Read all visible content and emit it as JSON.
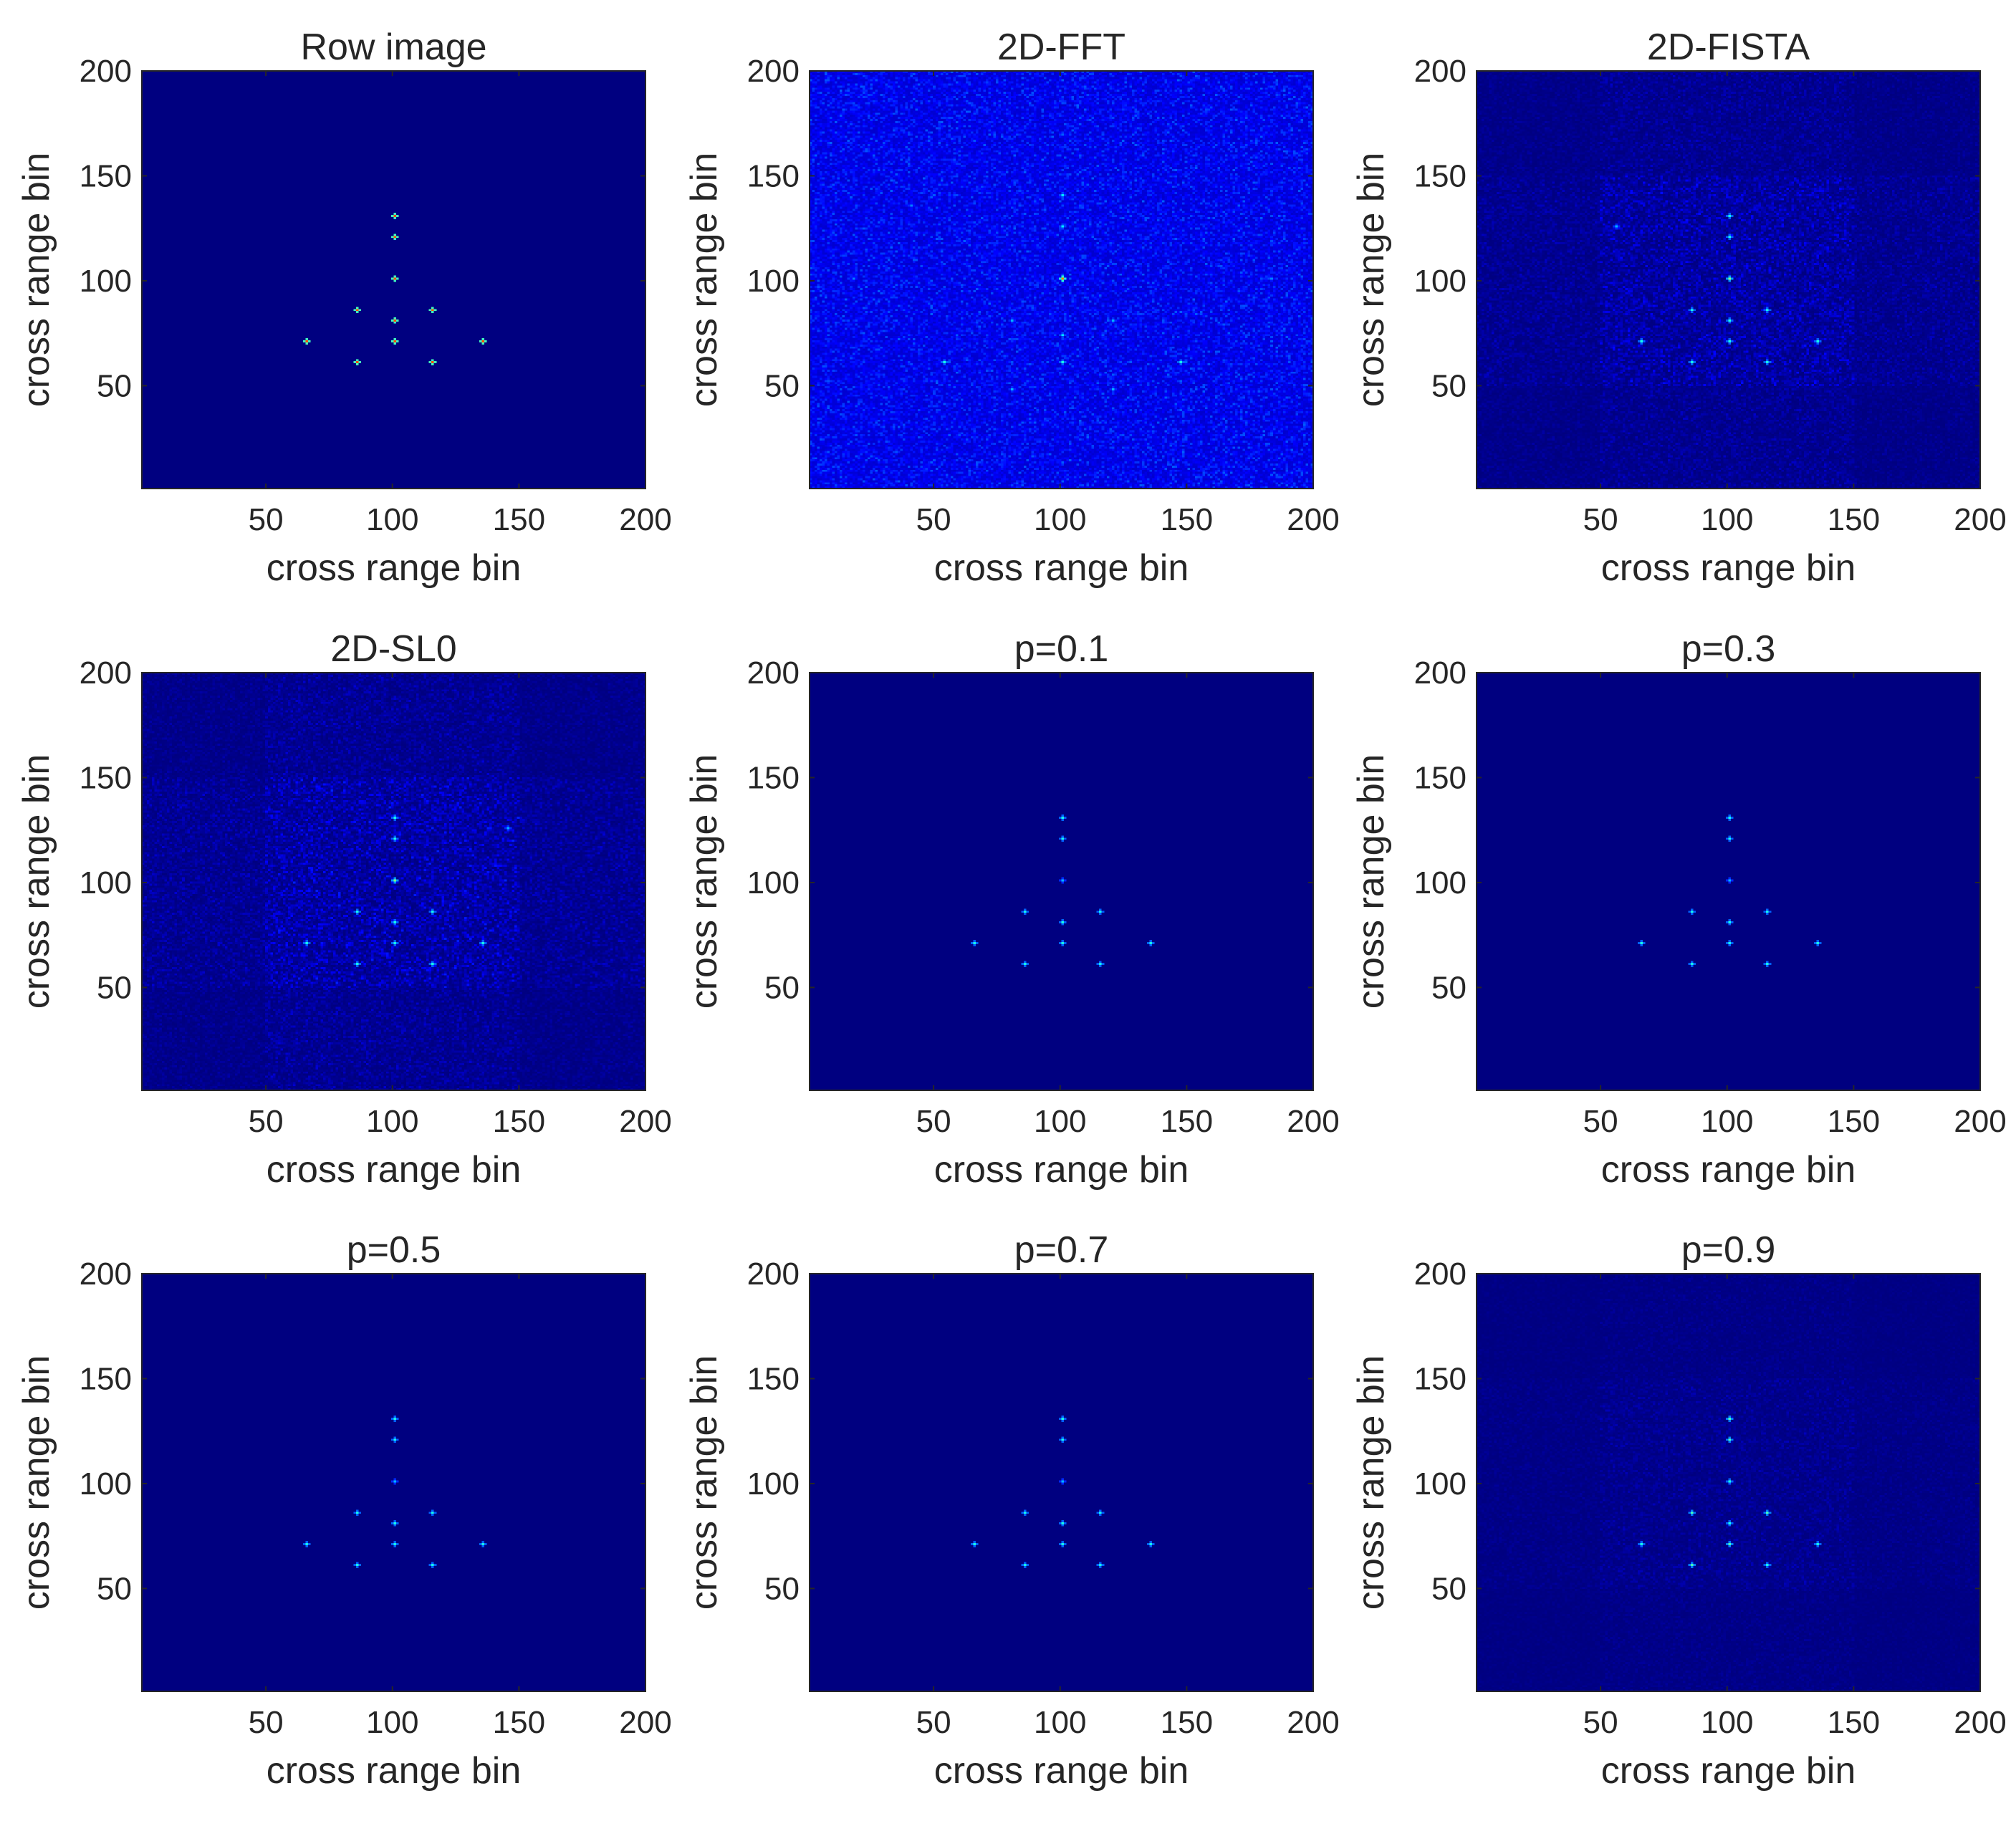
{
  "figure": {
    "colormap": "jet",
    "background_color": "#00008f",
    "axis_color": "#262626"
  },
  "chart_data": [
    {
      "type": "heatmap",
      "title": "Row image",
      "xlabel": "cross range bin",
      "ylabel": "cross range bin",
      "xlim": [
        1,
        200
      ],
      "ylim": [
        1,
        200
      ],
      "xticks": [
        50,
        100,
        150,
        200
      ],
      "yticks": [
        50,
        100,
        150,
        200
      ],
      "noise": "none",
      "noise_level": 0.0,
      "peaks": [
        {
          "x": 101,
          "y": 131,
          "v": 0.8
        },
        {
          "x": 101,
          "y": 121,
          "v": 0.8
        },
        {
          "x": 101,
          "y": 101,
          "v": 0.8
        },
        {
          "x": 86,
          "y": 86,
          "v": 0.8
        },
        {
          "x": 116,
          "y": 86,
          "v": 0.8
        },
        {
          "x": 101,
          "y": 81,
          "v": 0.8
        },
        {
          "x": 101,
          "y": 71,
          "v": 0.8
        },
        {
          "x": 66,
          "y": 71,
          "v": 0.8
        },
        {
          "x": 136,
          "y": 71,
          "v": 0.8
        },
        {
          "x": 86,
          "y": 61,
          "v": 0.8
        },
        {
          "x": 116,
          "y": 61,
          "v": 0.8
        }
      ]
    },
    {
      "type": "heatmap",
      "title": "2D-FFT",
      "xlabel": "cross range bin",
      "ylabel": "cross range bin",
      "xlim": [
        1,
        200
      ],
      "ylim": [
        1,
        200
      ],
      "xticks": [
        50,
        100,
        150,
        200
      ],
      "yticks": [
        50,
        100,
        150,
        200
      ],
      "noise": "global",
      "noise_level": 0.22,
      "peaks": [
        {
          "x": 101,
          "y": 101,
          "v": 0.75
        },
        {
          "x": 101,
          "y": 141,
          "v": 0.35
        },
        {
          "x": 101,
          "y": 126,
          "v": 0.35
        },
        {
          "x": 101,
          "y": 74,
          "v": 0.35
        },
        {
          "x": 101,
          "y": 61,
          "v": 0.4
        },
        {
          "x": 54,
          "y": 61,
          "v": 0.4
        },
        {
          "x": 148,
          "y": 61,
          "v": 0.4
        },
        {
          "x": 81,
          "y": 81,
          "v": 0.3
        },
        {
          "x": 121,
          "y": 81,
          "v": 0.3
        },
        {
          "x": 81,
          "y": 48,
          "v": 0.3
        },
        {
          "x": 121,
          "y": 48,
          "v": 0.3
        },
        {
          "x": 41,
          "y": 136,
          "v": 0.25
        },
        {
          "x": 18,
          "y": 101,
          "v": 0.25
        },
        {
          "x": 184,
          "y": 101,
          "v": 0.25
        }
      ]
    },
    {
      "type": "heatmap",
      "title": "2D-FISTA",
      "xlabel": "cross range bin",
      "ylabel": "cross range bin",
      "xlim": [
        1,
        200
      ],
      "ylim": [
        1,
        200
      ],
      "xticks": [
        50,
        100,
        150,
        200
      ],
      "yticks": [
        50,
        100,
        150,
        200
      ],
      "noise": "center_box",
      "noise_level": 0.14,
      "peaks": [
        {
          "x": 101,
          "y": 131,
          "v": 0.4
        },
        {
          "x": 101,
          "y": 121,
          "v": 0.4
        },
        {
          "x": 101,
          "y": 101,
          "v": 0.5
        },
        {
          "x": 86,
          "y": 86,
          "v": 0.4
        },
        {
          "x": 116,
          "y": 86,
          "v": 0.4
        },
        {
          "x": 101,
          "y": 81,
          "v": 0.4
        },
        {
          "x": 101,
          "y": 71,
          "v": 0.4
        },
        {
          "x": 66,
          "y": 71,
          "v": 0.4
        },
        {
          "x": 136,
          "y": 71,
          "v": 0.4
        },
        {
          "x": 86,
          "y": 61,
          "v": 0.4
        },
        {
          "x": 116,
          "y": 61,
          "v": 0.4
        },
        {
          "x": 56,
          "y": 126,
          "v": 0.3
        }
      ]
    },
    {
      "type": "heatmap",
      "title": "2D-SL0",
      "xlabel": "cross range bin",
      "ylabel": "cross range bin",
      "xlim": [
        1,
        200
      ],
      "ylim": [
        1,
        200
      ],
      "xticks": [
        50,
        100,
        150,
        200
      ],
      "yticks": [
        50,
        100,
        150,
        200
      ],
      "noise": "center_box",
      "noise_level": 0.16,
      "peaks": [
        {
          "x": 101,
          "y": 131,
          "v": 0.4
        },
        {
          "x": 101,
          "y": 121,
          "v": 0.4
        },
        {
          "x": 101,
          "y": 101,
          "v": 0.5
        },
        {
          "x": 86,
          "y": 86,
          "v": 0.4
        },
        {
          "x": 116,
          "y": 86,
          "v": 0.4
        },
        {
          "x": 101,
          "y": 81,
          "v": 0.4
        },
        {
          "x": 101,
          "y": 71,
          "v": 0.4
        },
        {
          "x": 66,
          "y": 71,
          "v": 0.4
        },
        {
          "x": 136,
          "y": 71,
          "v": 0.4
        },
        {
          "x": 86,
          "y": 61,
          "v": 0.4
        },
        {
          "x": 116,
          "y": 61,
          "v": 0.4
        },
        {
          "x": 146,
          "y": 126,
          "v": 0.3
        }
      ]
    },
    {
      "type": "heatmap",
      "title": "p=0.1",
      "xlabel": "cross range bin",
      "ylabel": "cross range bin",
      "xlim": [
        1,
        200
      ],
      "ylim": [
        1,
        200
      ],
      "xticks": [
        50,
        100,
        150,
        200
      ],
      "yticks": [
        50,
        100,
        150,
        200
      ],
      "noise": "none",
      "noise_level": 0.0,
      "peaks": [
        {
          "x": 101,
          "y": 131,
          "v": 0.4
        },
        {
          "x": 101,
          "y": 121,
          "v": 0.4
        },
        {
          "x": 101,
          "y": 101,
          "v": 0.3
        },
        {
          "x": 86,
          "y": 86,
          "v": 0.4
        },
        {
          "x": 116,
          "y": 86,
          "v": 0.4
        },
        {
          "x": 101,
          "y": 81,
          "v": 0.4
        },
        {
          "x": 101,
          "y": 71,
          "v": 0.4
        },
        {
          "x": 66,
          "y": 71,
          "v": 0.4
        },
        {
          "x": 136,
          "y": 71,
          "v": 0.4
        },
        {
          "x": 86,
          "y": 61,
          "v": 0.4
        },
        {
          "x": 116,
          "y": 61,
          "v": 0.4
        }
      ]
    },
    {
      "type": "heatmap",
      "title": "p=0.3",
      "xlabel": "cross range bin",
      "ylabel": "cross range bin",
      "xlim": [
        1,
        200
      ],
      "ylim": [
        1,
        200
      ],
      "xticks": [
        50,
        100,
        150,
        200
      ],
      "yticks": [
        50,
        100,
        150,
        200
      ],
      "noise": "none",
      "noise_level": 0.0,
      "peaks": [
        {
          "x": 101,
          "y": 131,
          "v": 0.4
        },
        {
          "x": 101,
          "y": 121,
          "v": 0.4
        },
        {
          "x": 101,
          "y": 101,
          "v": 0.3
        },
        {
          "x": 86,
          "y": 86,
          "v": 0.4
        },
        {
          "x": 116,
          "y": 86,
          "v": 0.4
        },
        {
          "x": 101,
          "y": 81,
          "v": 0.4
        },
        {
          "x": 101,
          "y": 71,
          "v": 0.4
        },
        {
          "x": 66,
          "y": 71,
          "v": 0.4
        },
        {
          "x": 136,
          "y": 71,
          "v": 0.4
        },
        {
          "x": 86,
          "y": 61,
          "v": 0.4
        },
        {
          "x": 116,
          "y": 61,
          "v": 0.4
        }
      ]
    },
    {
      "type": "heatmap",
      "title": "p=0.5",
      "xlabel": "cross range bin",
      "ylabel": "cross range bin",
      "xlim": [
        1,
        200
      ],
      "ylim": [
        1,
        200
      ],
      "xticks": [
        50,
        100,
        150,
        200
      ],
      "yticks": [
        50,
        100,
        150,
        200
      ],
      "noise": "none",
      "noise_level": 0.0,
      "peaks": [
        {
          "x": 101,
          "y": 131,
          "v": 0.4
        },
        {
          "x": 101,
          "y": 121,
          "v": 0.4
        },
        {
          "x": 101,
          "y": 101,
          "v": 0.3
        },
        {
          "x": 86,
          "y": 86,
          "v": 0.4
        },
        {
          "x": 116,
          "y": 86,
          "v": 0.4
        },
        {
          "x": 101,
          "y": 81,
          "v": 0.4
        },
        {
          "x": 101,
          "y": 71,
          "v": 0.4
        },
        {
          "x": 66,
          "y": 71,
          "v": 0.4
        },
        {
          "x": 136,
          "y": 71,
          "v": 0.4
        },
        {
          "x": 86,
          "y": 61,
          "v": 0.4
        },
        {
          "x": 116,
          "y": 61,
          "v": 0.4
        }
      ]
    },
    {
      "type": "heatmap",
      "title": "p=0.7",
      "xlabel": "cross range bin",
      "ylabel": "cross range bin",
      "xlim": [
        1,
        200
      ],
      "ylim": [
        1,
        200
      ],
      "xticks": [
        50,
        100,
        150,
        200
      ],
      "yticks": [
        50,
        100,
        150,
        200
      ],
      "noise": "none",
      "noise_level": 0.0,
      "peaks": [
        {
          "x": 101,
          "y": 131,
          "v": 0.4
        },
        {
          "x": 101,
          "y": 121,
          "v": 0.4
        },
        {
          "x": 101,
          "y": 101,
          "v": 0.3
        },
        {
          "x": 86,
          "y": 86,
          "v": 0.4
        },
        {
          "x": 116,
          "y": 86,
          "v": 0.4
        },
        {
          "x": 101,
          "y": 81,
          "v": 0.4
        },
        {
          "x": 101,
          "y": 71,
          "v": 0.4
        },
        {
          "x": 66,
          "y": 71,
          "v": 0.4
        },
        {
          "x": 136,
          "y": 71,
          "v": 0.4
        },
        {
          "x": 86,
          "y": 61,
          "v": 0.4
        },
        {
          "x": 116,
          "y": 61,
          "v": 0.4
        }
      ]
    },
    {
      "type": "heatmap",
      "title": "p=0.9",
      "xlabel": "cross range bin",
      "ylabel": "cross range bin",
      "xlim": [
        1,
        200
      ],
      "ylim": [
        1,
        200
      ],
      "xticks": [
        50,
        100,
        150,
        200
      ],
      "yticks": [
        50,
        100,
        150,
        200
      ],
      "noise": "center_box",
      "noise_level": 0.06,
      "peaks": [
        {
          "x": 101,
          "y": 131,
          "v": 0.45
        },
        {
          "x": 101,
          "y": 121,
          "v": 0.45
        },
        {
          "x": 101,
          "y": 101,
          "v": 0.4
        },
        {
          "x": 86,
          "y": 86,
          "v": 0.45
        },
        {
          "x": 116,
          "y": 86,
          "v": 0.45
        },
        {
          "x": 101,
          "y": 81,
          "v": 0.4
        },
        {
          "x": 101,
          "y": 71,
          "v": 0.45
        },
        {
          "x": 66,
          "y": 71,
          "v": 0.4
        },
        {
          "x": 136,
          "y": 71,
          "v": 0.4
        },
        {
          "x": 86,
          "y": 61,
          "v": 0.45
        },
        {
          "x": 116,
          "y": 61,
          "v": 0.4
        }
      ]
    }
  ]
}
